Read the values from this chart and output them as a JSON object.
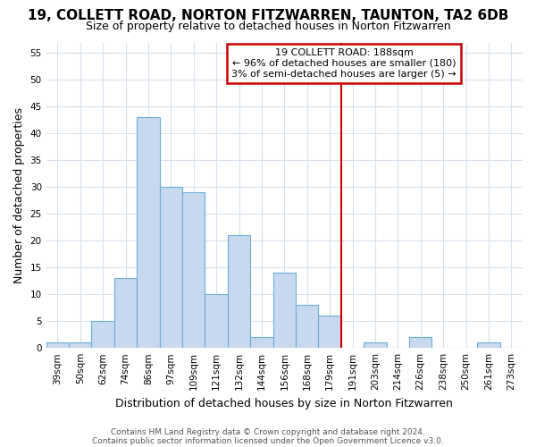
{
  "title1": "19, COLLETT ROAD, NORTON FITZWARREN, TAUNTON, TA2 6DB",
  "title2": "Size of property relative to detached houses in Norton Fitzwarren",
  "xlabel": "Distribution of detached houses by size in Norton Fitzwarren",
  "ylabel": "Number of detached properties",
  "footer1": "Contains HM Land Registry data © Crown copyright and database right 2024.",
  "footer2": "Contains public sector information licensed under the Open Government Licence v3.0.",
  "bar_labels": [
    "39sqm",
    "50sqm",
    "62sqm",
    "74sqm",
    "86sqm",
    "97sqm",
    "109sqm",
    "121sqm",
    "132sqm",
    "144sqm",
    "156sqm",
    "168sqm",
    "179sqm",
    "191sqm",
    "203sqm",
    "214sqm",
    "226sqm",
    "238sqm",
    "250sqm",
    "261sqm",
    "273sqm"
  ],
  "bar_values": [
    1,
    1,
    5,
    13,
    43,
    30,
    29,
    10,
    21,
    2,
    14,
    8,
    6,
    0,
    1,
    0,
    2,
    0,
    0,
    1,
    0
  ],
  "bar_color": "#c8d8ef",
  "bar_edge_color": "#6baed6",
  "vline_color": "#cc0000",
  "vline_x_index": 13.0,
  "annotation_text_line1": "19 COLLETT ROAD: 188sqm",
  "annotation_text_line2": "← 96% of detached houses are smaller (180)",
  "annotation_text_line3": "3% of semi-detached houses are larger (5) →",
  "annotation_box_edge_color": "#cc0000",
  "annotation_box_face_color": "#ffffff",
  "ylim": [
    0,
    57
  ],
  "yticks": [
    0,
    5,
    10,
    15,
    20,
    25,
    30,
    35,
    40,
    45,
    50,
    55
  ],
  "bg_color": "#ffffff",
  "plot_bg_color": "#ffffff",
  "grid_color": "#d8e0ec",
  "title1_fontsize": 11,
  "title2_fontsize": 9,
  "axis_label_fontsize": 9,
  "tick_fontsize": 7.5,
  "footer_fontsize": 6.5,
  "annotation_fontsize": 8
}
